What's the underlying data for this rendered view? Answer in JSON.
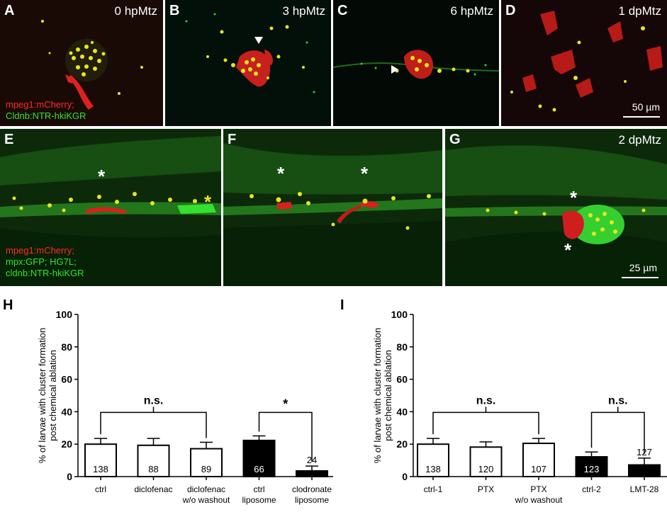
{
  "panels": {
    "A": {
      "label": "A",
      "time": "0 hpMtz"
    },
    "B": {
      "label": "B",
      "time": "3 hpMtz"
    },
    "C": {
      "label": "C",
      "time": "6 hpMtz"
    },
    "D": {
      "label": "D",
      "time": "1 dpMtz",
      "scale": "50 µm"
    },
    "E": {
      "label": "E"
    },
    "F": {
      "label": "F"
    },
    "G": {
      "label": "G",
      "time": "2 dpMtz",
      "scale": "25 µm"
    }
  },
  "legend_top": {
    "line1": "mpeg1:mCherry;",
    "line2": "Cldnb:NTR-hkiKGR"
  },
  "legend_bottom": {
    "line1": "mpeg1:mCherry;",
    "line2a": "mpx:GFP;",
    "line2b": "HG7L;",
    "line3": "cldnb:NTR-hkiKGR"
  },
  "chart_data": [
    {
      "panel": "H",
      "type": "bar",
      "ylabel": "% of larvae with cluster formation post chemical ablation",
      "ylim": [
        0,
        100
      ],
      "yticks": [
        0,
        20,
        40,
        60,
        80,
        100
      ],
      "categories": [
        "ctrl",
        "diclofenac",
        "diclofenac w/o washout",
        "ctrl liposome",
        "clodronate liposome"
      ],
      "category_lines": [
        [
          "ctrl"
        ],
        [
          "diclofenac"
        ],
        [
          "diclofenac",
          "w/o washout"
        ],
        [
          "ctrl",
          "liposome"
        ],
        [
          "clodronate",
          "liposome"
        ]
      ],
      "values": [
        20,
        19.3,
        17.2,
        22.3,
        3.5
      ],
      "errors": [
        3.5,
        4.2,
        4.0,
        2.8,
        3.0
      ],
      "n": [
        "138",
        "88",
        "89",
        "66",
        "24"
      ],
      "fill": [
        "white",
        "white",
        "white",
        "black",
        "black"
      ],
      "annotations": [
        {
          "text": "n.s.",
          "from": 0,
          "to": 2
        },
        {
          "text": "*",
          "from": 3,
          "to": 4
        }
      ]
    },
    {
      "panel": "I",
      "type": "bar",
      "ylabel": "% of larvae with cluster formation post chemical ablation",
      "ylim": [
        0,
        100
      ],
      "yticks": [
        0,
        20,
        40,
        60,
        80,
        100
      ],
      "categories": [
        "ctrl-1",
        "PTX",
        "PTX w/o washout",
        "ctrl-2",
        "LMT-28"
      ],
      "category_lines": [
        [
          "ctrl-1"
        ],
        [
          "PTX"
        ],
        [
          "PTX",
          "w/o washout"
        ],
        [
          "ctrl-2"
        ],
        [
          "LMT-28"
        ]
      ],
      "values": [
        20,
        18.2,
        20.5,
        12.2,
        7.2
      ],
      "errors": [
        3.5,
        3.2,
        3.0,
        3.0,
        4.2
      ],
      "n": [
        "138",
        "120",
        "107",
        "123",
        "127"
      ],
      "fill": [
        "white",
        "white",
        "white",
        "black",
        "black"
      ],
      "annotations": [
        {
          "text": "n.s.",
          "from": 0,
          "to": 2
        },
        {
          "text": "n.s.",
          "from": 3,
          "to": 4
        }
      ]
    }
  ]
}
